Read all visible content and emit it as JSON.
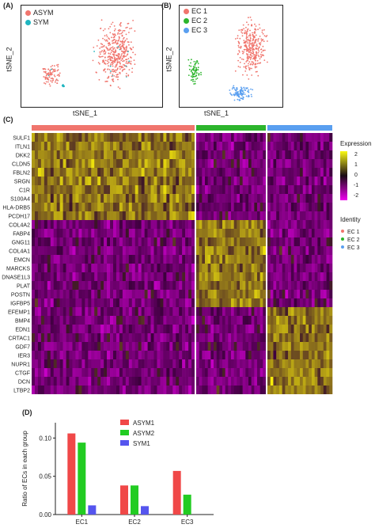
{
  "panels": {
    "a": {
      "label": "(A)",
      "xlabel": "tSNE_1",
      "ylabel": "tSNE_2",
      "legend": [
        {
          "name": "ASYM",
          "color": "#f0756d"
        },
        {
          "name": "SYM",
          "color": "#1fb5c0"
        }
      ]
    },
    "b": {
      "label": "(B)",
      "xlabel": "tSNE_1",
      "ylabel": "tSNE_2",
      "legend": [
        {
          "name": "EC 1",
          "color": "#f0756d"
        },
        {
          "name": "EC 2",
          "color": "#2cb52c"
        },
        {
          "name": "EC 3",
          "color": "#5a9ff0"
        }
      ]
    },
    "c": {
      "label": "(C)",
      "genes": [
        "SULF1",
        "ITLN1",
        "DKK2",
        "CLDN5",
        "FBLN2",
        "SRGN",
        "C1R",
        "S100A4",
        "HLA-DRB5",
        "PCDH17",
        "COL4A2",
        "FABP4",
        "GNG11",
        "COL4A1",
        "EMCN",
        "MARCKS",
        "DNASE1L3",
        "PLAT",
        "POSTN",
        "IGFBP5",
        "EFEMP1",
        "BMP4",
        "EDN1",
        "CRTAC1",
        "GDF7",
        "IER3",
        "NUPR1",
        "CTGF",
        "DCN",
        "LTBP2"
      ],
      "groups": [
        {
          "name": "EC 1",
          "color": "#f0756d"
        },
        {
          "name": "EC 2",
          "color": "#2cb52c"
        },
        {
          "name": "EC 3",
          "color": "#5a9ff0"
        }
      ],
      "expression_title": "Expression",
      "expression_ticks": [
        "2",
        "1",
        "0",
        "-1",
        "-2"
      ],
      "identity_title": "Identity"
    },
    "d": {
      "label": "(D)"
    }
  },
  "chart_data": {
    "type": "bar",
    "categories": [
      "EC1",
      "EC2",
      "EC3"
    ],
    "series": [
      {
        "name": "ASYM1",
        "values": [
          0.106,
          0.038,
          0.057
        ],
        "color": "#f04848"
      },
      {
        "name": "ASYM2",
        "values": [
          0.094,
          0.038,
          0.026
        ],
        "color": "#22cc22"
      },
      {
        "name": "SYM1",
        "values": [
          0.012,
          0.011,
          0.0
        ],
        "color": "#5555ee"
      }
    ],
    "ylabel": "Ratio of ECs in each group",
    "ylim": [
      0,
      0.12
    ],
    "yticks": [
      "0.00",
      "0.05",
      "0.10"
    ],
    "legend_position": "top-right"
  }
}
